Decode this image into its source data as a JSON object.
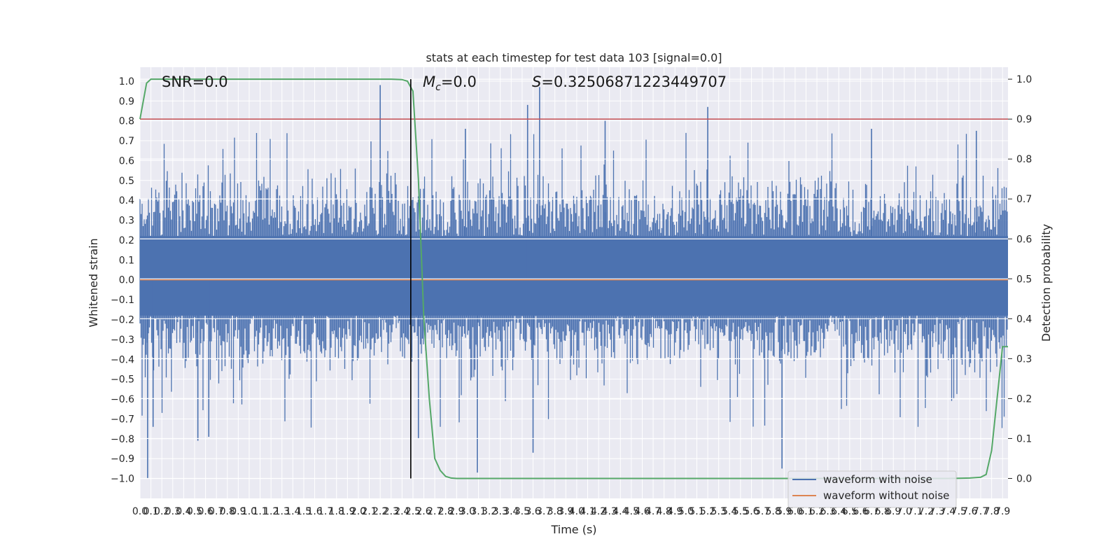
{
  "chart_data": {
    "type": "line",
    "title": "stats at each timestep for test data 103 [signal=0.0]",
    "xlabel": "Time (s)",
    "ylabel_left": "Whitened strain",
    "ylabel_right": "Detection probability",
    "xlim": [
      0.0,
      7.95
    ],
    "ylim_left": [
      -1.1,
      1.07
    ],
    "ylim_right": [
      -0.05,
      1.03
    ],
    "x_ticks": [
      "0.0",
      "0.1",
      "0.2",
      "0.3",
      "0.4",
      "0.5",
      "0.6",
      "0.7",
      "0.8",
      "0.9",
      "1.0",
      "1.1",
      "1.2",
      "1.3",
      "1.4",
      "1.5",
      "1.6",
      "1.7",
      "1.8",
      "1.9",
      "2.0",
      "2.1",
      "2.2",
      "2.3",
      "2.4",
      "2.5",
      "2.6",
      "2.7",
      "2.8",
      "2.9",
      "3.0",
      "3.1",
      "3.2",
      "3.3",
      "3.4",
      "3.5",
      "3.6",
      "3.7",
      "3.8",
      "3.9",
      "4.0",
      "4.1",
      "4.2",
      "4.3",
      "4.4",
      "4.5",
      "4.6",
      "4.7",
      "4.8",
      "4.9",
      "5.0",
      "5.1",
      "5.2",
      "5.3",
      "5.4",
      "5.5",
      "5.6",
      "5.7",
      "5.8",
      "5.9",
      "6.0",
      "6.1",
      "6.2",
      "6.3",
      "6.4",
      "6.5",
      "6.6",
      "6.7",
      "6.8",
      "6.9",
      "7.0",
      "7.1",
      "7.2",
      "7.3",
      "7.4",
      "7.5",
      "7.6",
      "7.7",
      "7.8",
      "7.9"
    ],
    "y_ticks_left": [
      "1.0",
      "0.9",
      "0.8",
      "0.7",
      "0.6",
      "0.5",
      "0.4",
      "0.3",
      "0.2",
      "0.1",
      "0.0",
      "-0.1",
      "-0.2",
      "-0.3",
      "-0.4",
      "-0.5",
      "-0.6",
      "-0.7",
      "-0.8",
      "-0.9",
      "-1.0"
    ],
    "y_ticks_right": [
      "1.0",
      "0.9",
      "0.8",
      "0.7",
      "0.6",
      "0.5",
      "0.4",
      "0.3",
      "0.2",
      "0.1",
      "0.0"
    ],
    "annotations": {
      "snr": "SNR=0.0",
      "mc_symbol": "M",
      "mc_sub": "c",
      "mc_value": "=0.0",
      "s_symbol": "S",
      "s_value": "=0.32506871223449707"
    },
    "grid": true,
    "legend_position": "lower-right",
    "series": [
      {
        "name": "waveform with noise",
        "axis": "left",
        "color": "#4c72b0",
        "noise_band_typical": [
          -0.4,
          0.45
        ],
        "noise_peak_max": 0.98,
        "noise_peak_min": -1.0
      },
      {
        "name": "waveform without noise",
        "axis": "left",
        "color": "#dd8452",
        "constant_value": 0.0
      },
      {
        "axis": "right",
        "color": "#55a868",
        "x": [
          0.0,
          0.06,
          0.1,
          0.2,
          0.5,
          1.0,
          1.5,
          2.0,
          2.3,
          2.4,
          2.45,
          2.5,
          2.55,
          2.6,
          2.65,
          2.7,
          2.75,
          2.8,
          2.85,
          2.9,
          3.0,
          3.5,
          4.0,
          5.0,
          6.0,
          7.0,
          7.4,
          7.5,
          7.6,
          7.7,
          7.75,
          7.8,
          7.85,
          7.9,
          7.95
        ],
        "y": [
          0.9,
          0.99,
          1.0,
          1.0,
          1.0,
          1.0,
          1.0,
          1.0,
          1.0,
          0.999,
          0.995,
          0.97,
          0.75,
          0.4,
          0.2,
          0.05,
          0.02,
          0.005,
          0.001,
          0.0,
          0.0,
          0.0,
          0.0,
          0.0,
          0.0,
          0.0,
          0.0,
          0.0005,
          0.001,
          0.003,
          0.01,
          0.07,
          0.2,
          0.33,
          0.33
        ]
      },
      {
        "axis": "right",
        "color": "#c44e52",
        "constant_value": 0.9
      }
    ],
    "vertical_line": {
      "x": 2.48,
      "color": "#000000"
    },
    "legend_entries": [
      "waveform with noise",
      "waveform without noise"
    ]
  }
}
